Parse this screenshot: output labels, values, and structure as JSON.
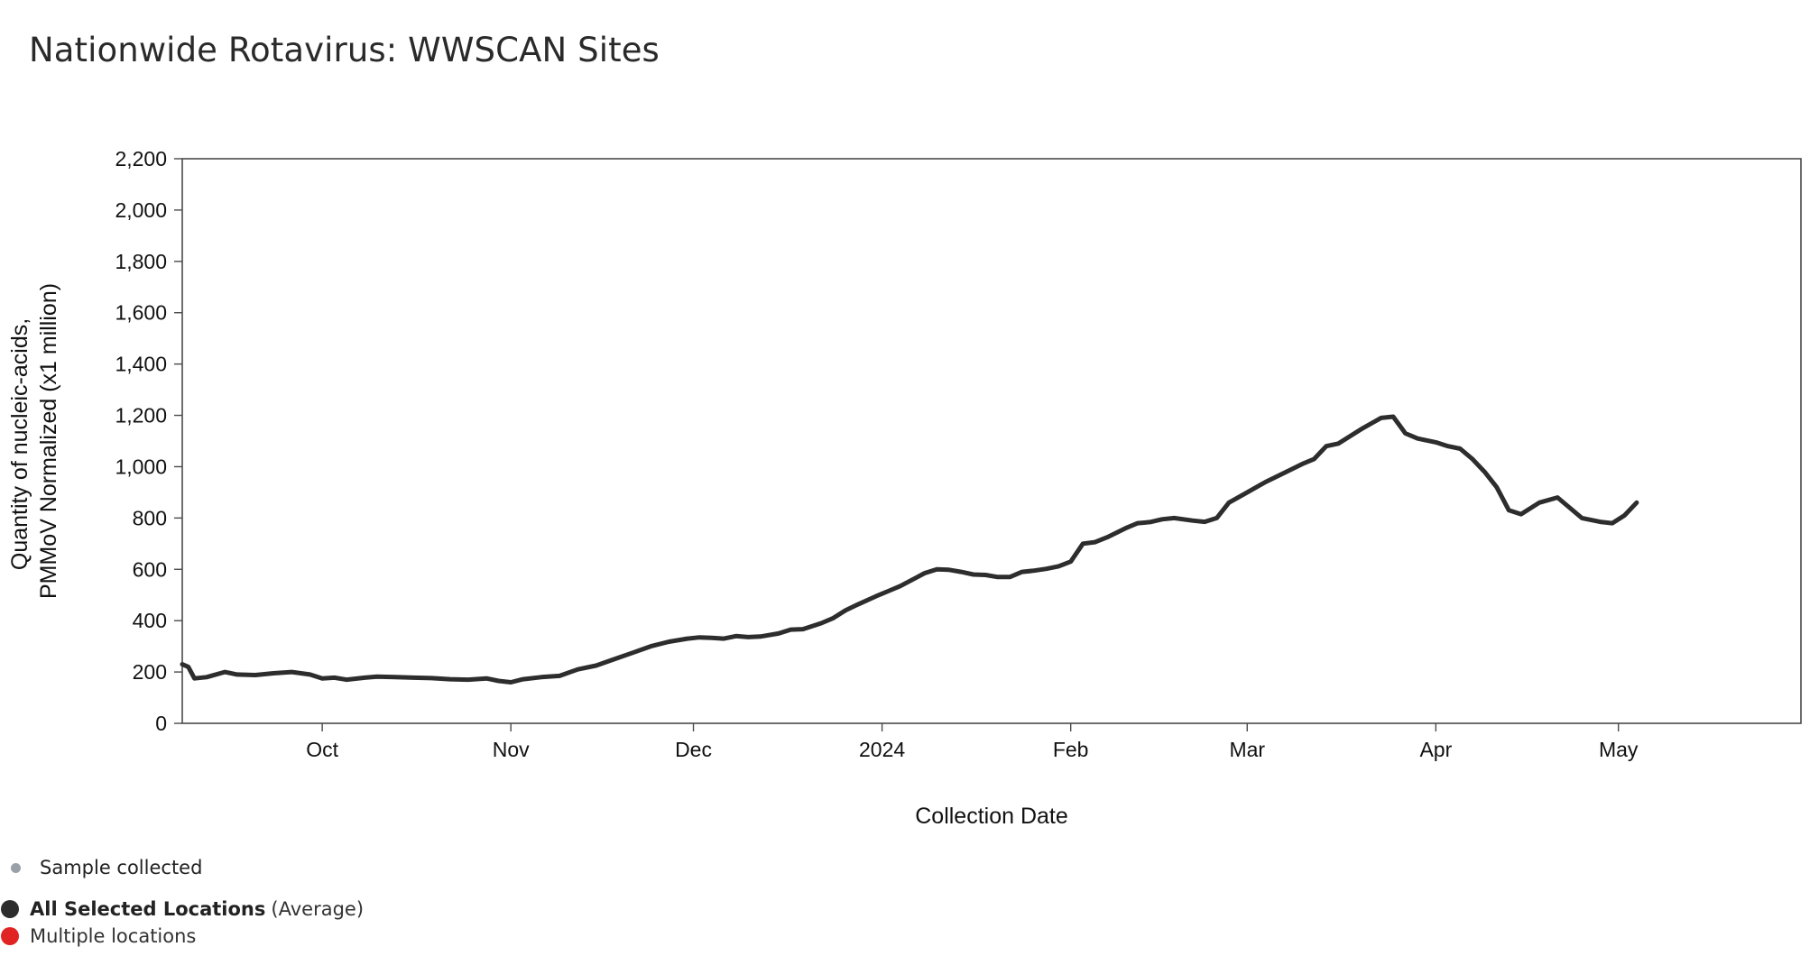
{
  "page": {
    "title": "Nationwide Rotavirus: WWSCAN Sites"
  },
  "legend": {
    "sample": {
      "label": "Sample collected",
      "color": "#9aa0a8"
    },
    "average": {
      "label_bold": "All Selected Locations",
      "label_suffix": "(Average)",
      "color": "#2d2d2d"
    },
    "multiple": {
      "label": "Multiple locations",
      "color": "#e02424"
    }
  },
  "chart_data": {
    "type": "line",
    "title": "Nationwide Rotavirus: WWSCAN Sites",
    "xlabel": "Collection Date",
    "ylabel_lines": [
      "Quantity of nucleic-acids,",
      "PMMoV Normalized (x1 million)"
    ],
    "xlim": [
      "2023-09-08",
      "2024-05-31"
    ],
    "ylim": [
      0,
      2200
    ],
    "yticks": [
      0,
      200,
      400,
      600,
      800,
      1000,
      1200,
      1400,
      1600,
      1800,
      2000,
      2200
    ],
    "ytick_labels": [
      "0",
      "200",
      "400",
      "600",
      "800",
      "1,000",
      "1,200",
      "1,400",
      "1,600",
      "1,800",
      "2,000",
      "2,200"
    ],
    "xticks": [
      "2023-10-01",
      "2023-11-01",
      "2023-12-01",
      "2024-01-01",
      "2024-02-01",
      "2024-03-01",
      "2024-04-01",
      "2024-05-01"
    ],
    "xtick_labels": [
      "Oct",
      "Nov",
      "Dec",
      "2024",
      "Feb",
      "Mar",
      "Apr",
      "May"
    ],
    "grid": false,
    "series": [
      {
        "color": "#2d2d2d",
        "points": [
          [
            "2023-09-08",
            230
          ],
          [
            "2023-09-09",
            220
          ],
          [
            "2023-09-10",
            175
          ],
          [
            "2023-09-12",
            180
          ],
          [
            "2023-09-15",
            200
          ],
          [
            "2023-09-17",
            190
          ],
          [
            "2023-09-20",
            188
          ],
          [
            "2023-09-23",
            195
          ],
          [
            "2023-09-26",
            200
          ],
          [
            "2023-09-29",
            190
          ],
          [
            "2023-10-01",
            175
          ],
          [
            "2023-10-03",
            178
          ],
          [
            "2023-10-05",
            170
          ],
          [
            "2023-10-08",
            178
          ],
          [
            "2023-10-10",
            182
          ],
          [
            "2023-10-13",
            180
          ],
          [
            "2023-10-16",
            178
          ],
          [
            "2023-10-19",
            176
          ],
          [
            "2023-10-22",
            172
          ],
          [
            "2023-10-25",
            170
          ],
          [
            "2023-10-28",
            175
          ],
          [
            "2023-10-30",
            165
          ],
          [
            "2023-11-01",
            160
          ],
          [
            "2023-11-03",
            172
          ],
          [
            "2023-11-06",
            180
          ],
          [
            "2023-11-09",
            185
          ],
          [
            "2023-11-12",
            210
          ],
          [
            "2023-11-15",
            225
          ],
          [
            "2023-11-18",
            250
          ],
          [
            "2023-11-21",
            275
          ],
          [
            "2023-11-24",
            300
          ],
          [
            "2023-11-27",
            318
          ],
          [
            "2023-11-30",
            330
          ],
          [
            "2023-12-02",
            335
          ],
          [
            "2023-12-04",
            333
          ],
          [
            "2023-12-06",
            330
          ],
          [
            "2023-12-08",
            340
          ],
          [
            "2023-12-10",
            336
          ],
          [
            "2023-12-12",
            338
          ],
          [
            "2023-12-15",
            350
          ],
          [
            "2023-12-17",
            365
          ],
          [
            "2023-12-19",
            367
          ],
          [
            "2023-12-22",
            390
          ],
          [
            "2023-12-24",
            410
          ],
          [
            "2023-12-26",
            440
          ],
          [
            "2023-12-28",
            463
          ],
          [
            "2023-12-31",
            495
          ],
          [
            "2024-01-02",
            515
          ],
          [
            "2024-01-04",
            535
          ],
          [
            "2024-01-06",
            560
          ],
          [
            "2024-01-08",
            585
          ],
          [
            "2024-01-10",
            600
          ],
          [
            "2024-01-12",
            598
          ],
          [
            "2024-01-14",
            590
          ],
          [
            "2024-01-16",
            580
          ],
          [
            "2024-01-18",
            578
          ],
          [
            "2024-01-20",
            570
          ],
          [
            "2024-01-22",
            570
          ],
          [
            "2024-01-24",
            590
          ],
          [
            "2024-01-26",
            595
          ],
          [
            "2024-01-28",
            602
          ],
          [
            "2024-01-30",
            612
          ],
          [
            "2024-02-01",
            630
          ],
          [
            "2024-02-03",
            700
          ],
          [
            "2024-02-05",
            706
          ],
          [
            "2024-02-07",
            725
          ],
          [
            "2024-02-10",
            760
          ],
          [
            "2024-02-12",
            780
          ],
          [
            "2024-02-14",
            784
          ],
          [
            "2024-02-16",
            795
          ],
          [
            "2024-02-18",
            800
          ],
          [
            "2024-02-21",
            790
          ],
          [
            "2024-02-23",
            785
          ],
          [
            "2024-02-25",
            800
          ],
          [
            "2024-02-27",
            860
          ],
          [
            "2024-03-01",
            900
          ],
          [
            "2024-03-04",
            940
          ],
          [
            "2024-03-07",
            975
          ],
          [
            "2024-03-10",
            1010
          ],
          [
            "2024-03-12",
            1030
          ],
          [
            "2024-03-14",
            1080
          ],
          [
            "2024-03-16",
            1090
          ],
          [
            "2024-03-18",
            1120
          ],
          [
            "2024-03-20",
            1150
          ],
          [
            "2024-03-23",
            1190
          ],
          [
            "2024-03-25",
            1195
          ],
          [
            "2024-03-27",
            1130
          ],
          [
            "2024-03-29",
            1110
          ],
          [
            "2024-04-01",
            1095
          ],
          [
            "2024-04-03",
            1080
          ],
          [
            "2024-04-05",
            1070
          ],
          [
            "2024-04-07",
            1030
          ],
          [
            "2024-04-09",
            980
          ],
          [
            "2024-04-11",
            920
          ],
          [
            "2024-04-13",
            830
          ],
          [
            "2024-04-15",
            815
          ],
          [
            "2024-04-18",
            860
          ],
          [
            "2024-04-21",
            880
          ],
          [
            "2024-04-23",
            840
          ],
          [
            "2024-04-25",
            800
          ],
          [
            "2024-04-28",
            785
          ],
          [
            "2024-04-30",
            780
          ],
          [
            "2024-05-02",
            810
          ],
          [
            "2024-05-04",
            860
          ]
        ]
      }
    ]
  }
}
